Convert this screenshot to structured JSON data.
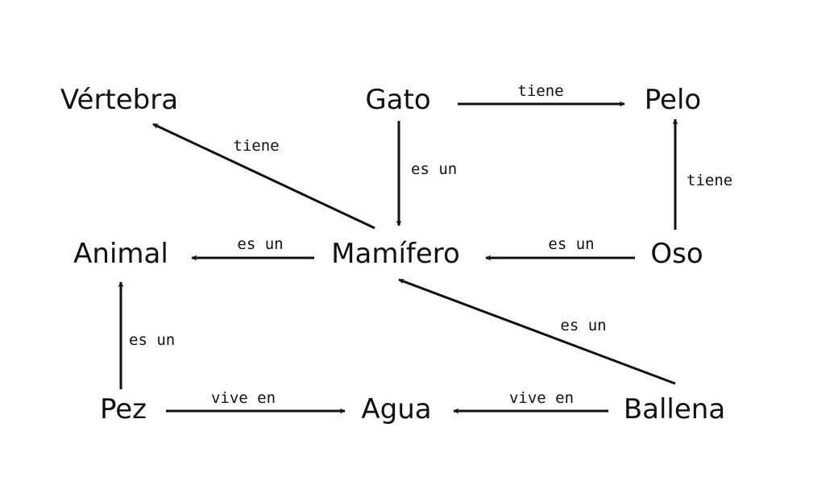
{
  "nodes": {
    "vertebra": "Vértebra",
    "gato": "Gato",
    "pelo": "Pelo",
    "animal": "Animal",
    "mamifero": "Mamífero",
    "oso": "Oso",
    "pez": "Pez",
    "agua": "Agua",
    "ballena": "Ballena"
  },
  "edges": {
    "gato_pelo": "tiene",
    "mamifero_vertebra": "tiene",
    "gato_mamifero": "es un",
    "oso_pelo": "tiene",
    "mamifero_animal": "es un",
    "oso_mamifero": "es un",
    "ballena_mamifero": "es un",
    "pez_animal": "es un",
    "pez_agua": "vive en",
    "ballena_agua": "vive en"
  },
  "colors": {
    "ink": "#111111",
    "background": "#ffffff"
  }
}
